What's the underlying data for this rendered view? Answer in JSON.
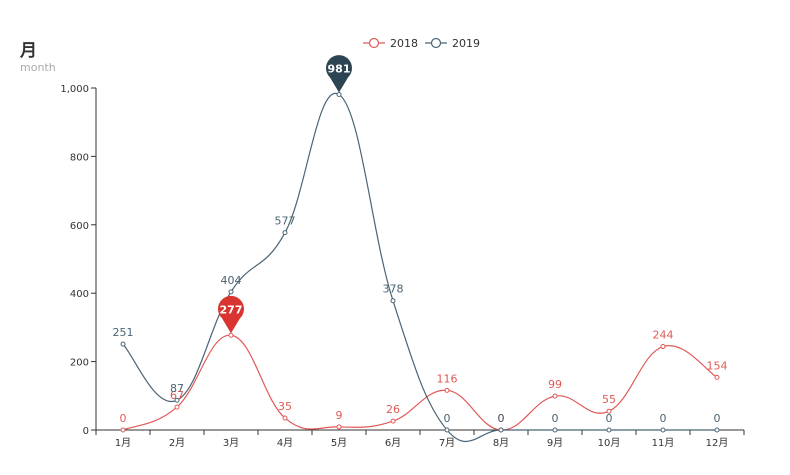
{
  "chart_data": {
    "type": "line",
    "title": "月",
    "subtitle": "month",
    "categories": [
      "1月",
      "2月",
      "3月",
      "4月",
      "5月",
      "6月",
      "7月",
      "8月",
      "9月",
      "10月",
      "11月",
      "12月"
    ],
    "ylim": [
      0,
      1000
    ],
    "yticks": [
      0,
      200,
      400,
      600,
      800,
      1000
    ],
    "ytick_labels": [
      "0",
      "200",
      "400",
      "600",
      "800",
      "1,000"
    ],
    "legend_position": "top-center",
    "series": [
      {
        "name": "2018",
        "color": "#e05a58",
        "values": [
          0,
          67,
          277,
          35,
          9,
          26,
          116,
          0,
          99,
          55,
          244,
          154
        ],
        "max_pin": {
          "index": 2,
          "label": "277",
          "color": "#d9342f"
        }
      },
      {
        "name": "2019",
        "color": "#4a6475",
        "values": [
          251,
          87,
          404,
          577,
          981,
          378,
          0,
          0,
          0,
          0,
          0,
          0
        ],
        "max_pin": {
          "index": 4,
          "label": "981",
          "color": "#2d4452"
        }
      }
    ]
  }
}
